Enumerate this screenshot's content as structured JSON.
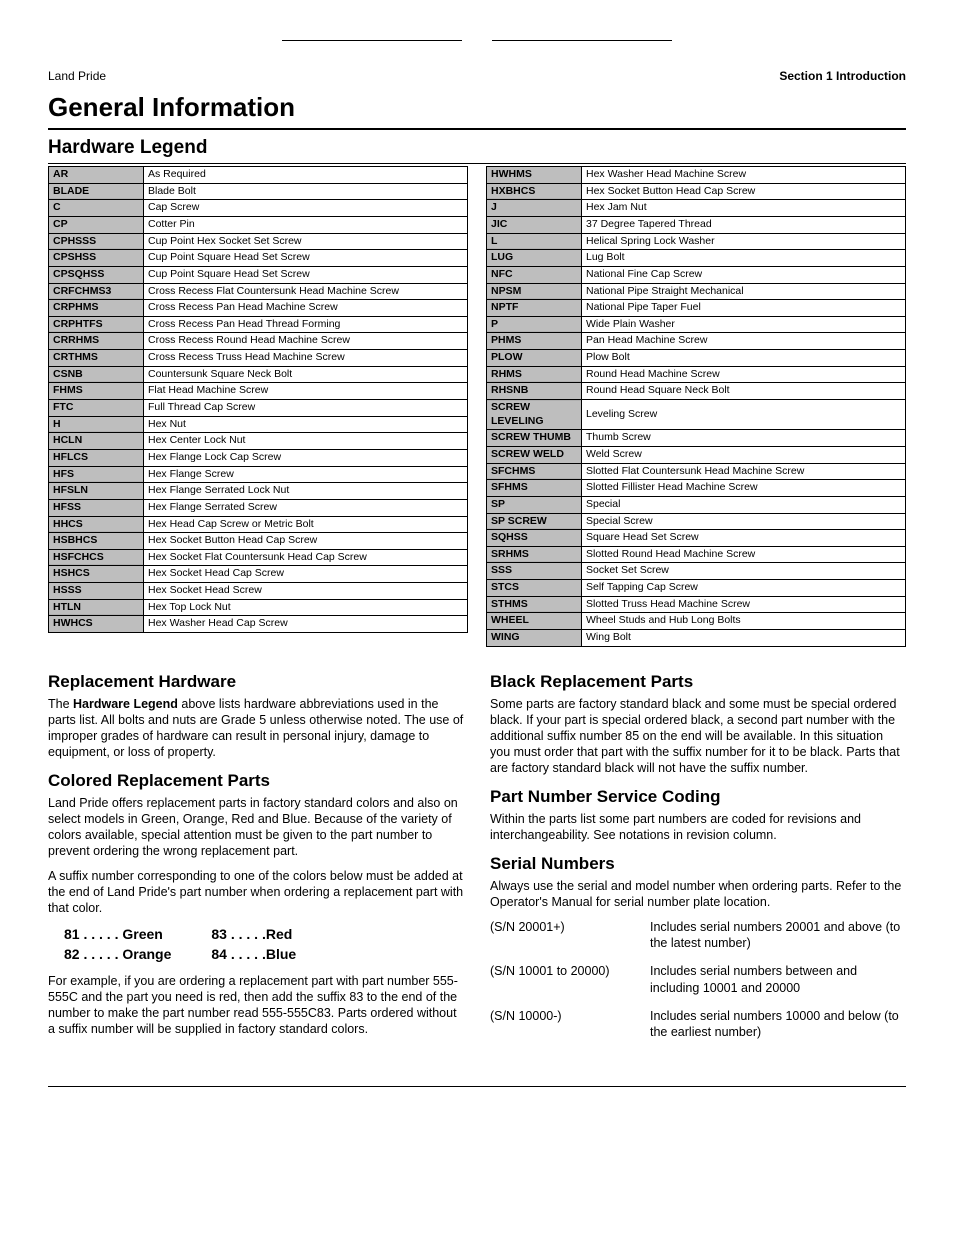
{
  "header": {
    "left": "Land Pride",
    "right": "Section 1   Introduction"
  },
  "title": "General Information",
  "legend_title": "Hardware Legend",
  "legend_left": [
    {
      "a": "AR",
      "d": "As Required"
    },
    {
      "a": "BLADE",
      "d": "Blade Bolt"
    },
    {
      "a": "C",
      "d": "Cap Screw"
    },
    {
      "a": "CP",
      "d": "Cotter Pin"
    },
    {
      "a": "CPHSSS",
      "d": "Cup Point Hex Socket Set Screw"
    },
    {
      "a": "CPSHSS",
      "d": "Cup Point Square Head Set Screw"
    },
    {
      "a": "CPSQHSS",
      "d": "Cup Point Square Head Set Screw"
    },
    {
      "a": "CRFCHMS3",
      "d": "Cross Recess Flat Countersunk Head Machine Screw"
    },
    {
      "a": "CRPHMS",
      "d": "Cross Recess Pan Head Machine Screw"
    },
    {
      "a": "CRPHTFS",
      "d": "Cross Recess Pan Head Thread Forming"
    },
    {
      "a": "CRRHMS",
      "d": "Cross Recess Round Head Machine Screw"
    },
    {
      "a": "CRTHMS",
      "d": "Cross Recess Truss Head Machine Screw"
    },
    {
      "a": "CSNB",
      "d": "Countersunk Square Neck Bolt"
    },
    {
      "a": "FHMS",
      "d": "Flat Head Machine Screw"
    },
    {
      "a": "FTC",
      "d": "Full Thread Cap Screw"
    },
    {
      "a": "H",
      "d": "Hex Nut"
    },
    {
      "a": "HCLN",
      "d": "Hex Center Lock Nut"
    },
    {
      "a": "HFLCS",
      "d": "Hex Flange Lock Cap Screw"
    },
    {
      "a": "HFS",
      "d": "Hex Flange Screw"
    },
    {
      "a": "HFSLN",
      "d": "Hex Flange Serrated Lock Nut"
    },
    {
      "a": "HFSS",
      "d": "Hex Flange Serrated Screw"
    },
    {
      "a": "HHCS",
      "d": "Hex Head Cap Screw or Metric Bolt"
    },
    {
      "a": "HSBHCS",
      "d": "Hex Socket Button Head Cap Screw"
    },
    {
      "a": "HSFCHCS",
      "d": "Hex Socket Flat Countersunk Head Cap Screw"
    },
    {
      "a": "HSHCS",
      "d": "Hex Socket Head Cap Screw"
    },
    {
      "a": "HSSS",
      "d": "Hex Socket Head Screw"
    },
    {
      "a": "HTLN",
      "d": "Hex Top Lock Nut"
    },
    {
      "a": "HWHCS",
      "d": "Hex Washer Head Cap Screw"
    }
  ],
  "legend_right": [
    {
      "a": "HWHMS",
      "d": "Hex Washer Head Machine Screw"
    },
    {
      "a": "HXBHCS",
      "d": "Hex Socket Button Head Cap Screw"
    },
    {
      "a": "J",
      "d": "Hex Jam Nut"
    },
    {
      "a": "JIC",
      "d": "37 Degree Tapered Thread"
    },
    {
      "a": "L",
      "d": "Helical Spring Lock Washer"
    },
    {
      "a": "LUG",
      "d": "Lug Bolt"
    },
    {
      "a": "NFC",
      "d": "National Fine Cap Screw"
    },
    {
      "a": "NPSM",
      "d": "National Pipe Straight Mechanical"
    },
    {
      "a": "NPTF",
      "d": "National Pipe Taper Fuel"
    },
    {
      "a": "P",
      "d": "Wide Plain Washer"
    },
    {
      "a": "PHMS",
      "d": "Pan Head Machine Screw"
    },
    {
      "a": "PLOW",
      "d": "Plow Bolt"
    },
    {
      "a": "RHMS",
      "d": "Round Head Machine Screw"
    },
    {
      "a": "RHSNB",
      "d": "Round Head Square Neck Bolt"
    },
    {
      "a": "SCREW LEVELING",
      "d": "Leveling Screw"
    },
    {
      "a": "SCREW THUMB",
      "d": "Thumb Screw"
    },
    {
      "a": "SCREW WELD",
      "d": "Weld Screw"
    },
    {
      "a": "SFCHMS",
      "d": "Slotted Flat Countersunk Head Machine Screw"
    },
    {
      "a": "SFHMS",
      "d": "Slotted Fillister Head Machine Screw"
    },
    {
      "a": "SP",
      "d": "Special"
    },
    {
      "a": "SP SCREW",
      "d": "Special Screw"
    },
    {
      "a": "SQHSS",
      "d": "Square Head Set Screw"
    },
    {
      "a": "SRHMS",
      "d": "Slotted Round Head Machine Screw"
    },
    {
      "a": "SSS",
      "d": "Socket Set Screw"
    },
    {
      "a": "STCS",
      "d": "Self Tapping Cap Screw"
    },
    {
      "a": "STHMS",
      "d": "Slotted Truss Head Machine Screw"
    },
    {
      "a": "WHEEL",
      "d": "Wheel Studs and Hub Long Bolts"
    },
    {
      "a": "WING",
      "d": "Wing Bolt"
    }
  ],
  "sections": {
    "replacement_hw": {
      "title": "Replacement Hardware",
      "para": "The <strong>Hardware Legend</strong> above lists hardware abbreviations used in the parts list. All bolts and nuts are Grade 5 unless otherwise noted. The use of improper grades of hardware can result in personal injury, damage to equipment, or loss of property."
    },
    "colored": {
      "title": "Colored Replacement Parts",
      "p1": "Land Pride offers replacement parts in factory standard colors and also on select models in Green, Orange, Red and Blue. Because of the variety of colors available, special attention must be given to the part number to prevent ordering the wrong replacement part.",
      "p2": "A suffix number corresponding to one of the colors below must be added at the end of Land Pride's part number when ordering a replacement part with that color.",
      "codes": {
        "r1c1": "81 . . . . .  Green",
        "r2c1": "82 . . . . .  Orange",
        "r1c2": "83  . . . . .Red",
        "r2c2": "84  . . . . .Blue"
      },
      "p3": "For example, if you are ordering a replacement part with part number 555-555C and the part you need is red, then add the suffix 83 to the end of the number to make the part number read 555-555C83. Parts ordered without a suffix number will be supplied in factory standard colors."
    },
    "black": {
      "title": "Black Replacement Parts",
      "p1": "Some parts are factory standard black and some must be special ordered black. If your part is special ordered black, a second part number with the additional suffix number 85 on the end will be available. In this situation you must order that part with the suffix number for it to be black. Parts that are factory standard black will not have the suffix number."
    },
    "coding": {
      "title": "Part Number Service Coding",
      "p1": "Within the parts list some part numbers are coded for revisions and interchangeability. See notations in revision column."
    },
    "serial": {
      "title": "Serial Numbers",
      "p1": "Always use the serial and model number when ordering parts. Refer to the Operator's Manual for serial number plate location.",
      "rows": [
        {
          "k": "(S/N 20001+)",
          "v": "Includes serial numbers 20001 and above (to the latest number)"
        },
        {
          "k": "(S/N 10001 to 20000)",
          "v": "Includes serial numbers between and including 10001 and 20000"
        },
        {
          "k": "(S/N 10000-)",
          "v": "Includes serial numbers 10000 and below (to the earliest number)"
        }
      ]
    }
  }
}
